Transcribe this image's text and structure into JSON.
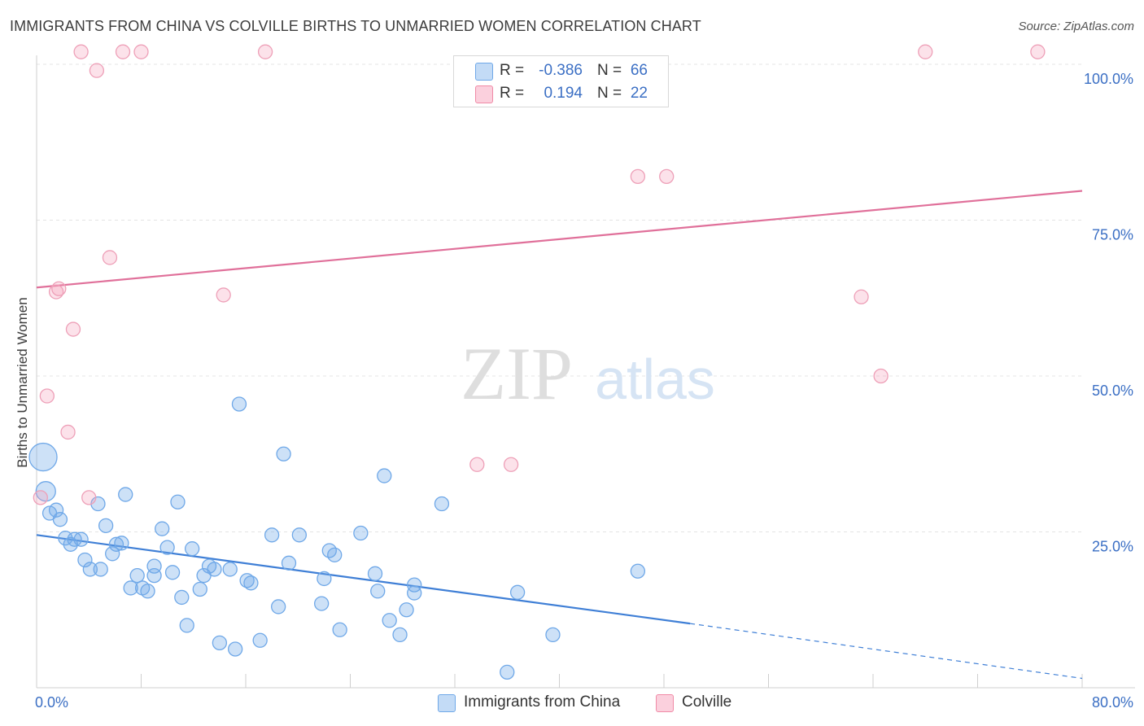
{
  "title": "IMMIGRANTS FROM CHINA VS COLVILLE BIRTHS TO UNMARRIED WOMEN CORRELATION CHART",
  "source": "Source: ZipAtlas.com",
  "watermark": {
    "zip": "ZIP",
    "atlas": "atlas"
  },
  "stats": [
    {
      "r_label": "R =",
      "r_value": "-0.386",
      "n_label": "N =",
      "n_value": "66",
      "color": "#6fa8e8"
    },
    {
      "r_label": "R =",
      "r_value": "0.194",
      "n_label": "N =",
      "n_value": "22",
      "color": "#f08aa6"
    }
  ],
  "legend": [
    {
      "label": "Immigrants from China",
      "color": "#6fa8e8"
    },
    {
      "label": "Colville",
      "color": "#f08aa6"
    }
  ],
  "chart_data": {
    "type": "scatter",
    "title": "IMMIGRANTS FROM CHINA VS COLVILLE BIRTHS TO UNMARRIED WOMEN CORRELATION CHART",
    "xlabel": "",
    "ylabel": "Births to Unmarried Women",
    "xlim": [
      0,
      80
    ],
    "ylim": [
      0,
      100
    ],
    "x_tick_labels": [
      {
        "value": 0,
        "label": "0.0%"
      },
      {
        "value": 80,
        "label": "80.0%"
      }
    ],
    "y_tick_labels": [
      {
        "value": 100,
        "label": "100.0%"
      },
      {
        "value": 75,
        "label": "75.0%"
      },
      {
        "value": 50,
        "label": "50.0%"
      },
      {
        "value": 25,
        "label": "25.0%"
      }
    ],
    "gridlines": [
      25,
      50,
      75,
      100
    ],
    "series": [
      {
        "name": "Immigrants from China",
        "color": "#6fa8e8",
        "trend": {
          "x0": 0,
          "y0": 24.5,
          "x1": 50,
          "y1": 10.3,
          "dash_to_x": 80,
          "dash_to_y": 1.5
        },
        "points": [
          {
            "x": 0.5,
            "y": 37.0,
            "big": 1
          },
          {
            "x": 0.7,
            "y": 31.5,
            "big": 1
          },
          {
            "x": 1.0,
            "y": 28.0
          },
          {
            "x": 1.5,
            "y": 28.5
          },
          {
            "x": 1.8,
            "y": 27.0
          },
          {
            "x": 2.2,
            "y": 24.0
          },
          {
            "x": 2.6,
            "y": 23.0
          },
          {
            "x": 2.9,
            "y": 23.8
          },
          {
            "x": 3.4,
            "y": 23.8
          },
          {
            "x": 3.7,
            "y": 20.5
          },
          {
            "x": 4.1,
            "y": 19.0
          },
          {
            "x": 4.7,
            "y": 29.5
          },
          {
            "x": 4.9,
            "y": 19.0
          },
          {
            "x": 5.3,
            "y": 26.0
          },
          {
            "x": 5.8,
            "y": 21.5
          },
          {
            "x": 6.1,
            "y": 23.0
          },
          {
            "x": 6.5,
            "y": 23.2
          },
          {
            "x": 6.8,
            "y": 31.0
          },
          {
            "x": 7.2,
            "y": 16.0
          },
          {
            "x": 7.7,
            "y": 18.0
          },
          {
            "x": 8.1,
            "y": 16.0
          },
          {
            "x": 8.5,
            "y": 15.5
          },
          {
            "x": 9.0,
            "y": 19.5
          },
          {
            "x": 9.0,
            "y": 18.0
          },
          {
            "x": 9.6,
            "y": 25.5
          },
          {
            "x": 10.0,
            "y": 22.5
          },
          {
            "x": 10.4,
            "y": 18.5
          },
          {
            "x": 10.8,
            "y": 29.8
          },
          {
            "x": 11.1,
            "y": 14.5
          },
          {
            "x": 11.5,
            "y": 10.0
          },
          {
            "x": 11.9,
            "y": 22.3
          },
          {
            "x": 12.5,
            "y": 15.8
          },
          {
            "x": 12.8,
            "y": 18.0
          },
          {
            "x": 13.2,
            "y": 19.5
          },
          {
            "x": 13.6,
            "y": 19.0
          },
          {
            "x": 14.0,
            "y": 7.2
          },
          {
            "x": 14.8,
            "y": 19.0
          },
          {
            "x": 15.2,
            "y": 6.2
          },
          {
            "x": 15.5,
            "y": 45.5
          },
          {
            "x": 16.1,
            "y": 17.2
          },
          {
            "x": 16.4,
            "y": 16.8
          },
          {
            "x": 17.1,
            "y": 7.6
          },
          {
            "x": 18.0,
            "y": 24.5
          },
          {
            "x": 18.5,
            "y": 13.0
          },
          {
            "x": 18.9,
            "y": 37.5
          },
          {
            "x": 19.3,
            "y": 20.0
          },
          {
            "x": 20.1,
            "y": 24.5
          },
          {
            "x": 21.8,
            "y": 13.5
          },
          {
            "x": 22.0,
            "y": 17.5
          },
          {
            "x": 22.4,
            "y": 22.0
          },
          {
            "x": 22.8,
            "y": 21.3
          },
          {
            "x": 23.2,
            "y": 9.3
          },
          {
            "x": 24.8,
            "y": 24.8
          },
          {
            "x": 25.9,
            "y": 18.3
          },
          {
            "x": 26.1,
            "y": 15.5
          },
          {
            "x": 26.6,
            "y": 34.0
          },
          {
            "x": 27.0,
            "y": 10.8
          },
          {
            "x": 27.8,
            "y": 8.5
          },
          {
            "x": 28.3,
            "y": 12.5
          },
          {
            "x": 28.9,
            "y": 15.2
          },
          {
            "x": 28.9,
            "y": 16.5
          },
          {
            "x": 31.0,
            "y": 29.5
          },
          {
            "x": 36.0,
            "y": 2.5
          },
          {
            "x": 36.8,
            "y": 15.3
          },
          {
            "x": 39.5,
            "y": 8.5
          },
          {
            "x": 46.0,
            "y": 18.7
          }
        ]
      },
      {
        "name": "Colville",
        "color": "#f08aa6",
        "trend": {
          "x0": 0,
          "y0": 64.2,
          "x1": 80,
          "y1": 79.7
        },
        "points": [
          {
            "x": 0.3,
            "y": 30.5
          },
          {
            "x": 0.8,
            "y": 46.8
          },
          {
            "x": 1.5,
            "y": 63.5
          },
          {
            "x": 1.7,
            "y": 64.0
          },
          {
            "x": 2.4,
            "y": 41.0
          },
          {
            "x": 2.8,
            "y": 57.5
          },
          {
            "x": 3.4,
            "y": 102.0
          },
          {
            "x": 4.0,
            "y": 30.5
          },
          {
            "x": 4.6,
            "y": 99.0
          },
          {
            "x": 5.6,
            "y": 69.0
          },
          {
            "x": 6.6,
            "y": 102.0
          },
          {
            "x": 8.0,
            "y": 102.0
          },
          {
            "x": 14.3,
            "y": 63.0
          },
          {
            "x": 17.5,
            "y": 102.0
          },
          {
            "x": 33.7,
            "y": 35.8
          },
          {
            "x": 36.3,
            "y": 35.8
          },
          {
            "x": 46.0,
            "y": 82.0
          },
          {
            "x": 48.2,
            "y": 82.0
          },
          {
            "x": 63.1,
            "y": 62.7
          },
          {
            "x": 64.6,
            "y": 50.0
          },
          {
            "x": 68.0,
            "y": 102.0
          },
          {
            "x": 76.6,
            "y": 102.0
          }
        ]
      }
    ]
  }
}
